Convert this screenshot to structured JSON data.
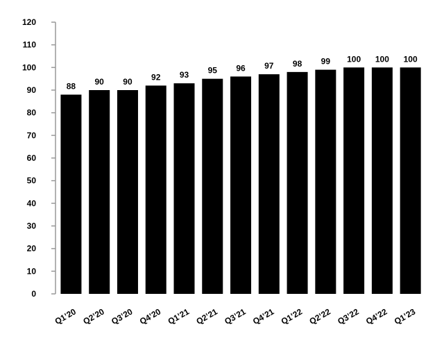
{
  "chart_data": {
    "type": "bar",
    "categories": [
      "Q1’20",
      "Q2’20",
      "Q3’20",
      "Q4’20",
      "Q1’21",
      "Q2’21",
      "Q3’21",
      "Q4’21",
      "Q1’22",
      "Q2’22",
      "Q3’22",
      "Q4’22",
      "Q1’23"
    ],
    "values": [
      88,
      90,
      90,
      92,
      93,
      95,
      96,
      97,
      98,
      99,
      100,
      100,
      100
    ],
    "color": "#000000",
    "ylim": [
      0,
      120
    ],
    "yticks": [
      0,
      10,
      20,
      30,
      40,
      50,
      60,
      70,
      80,
      90,
      100,
      110,
      120
    ],
    "grid": false
  }
}
